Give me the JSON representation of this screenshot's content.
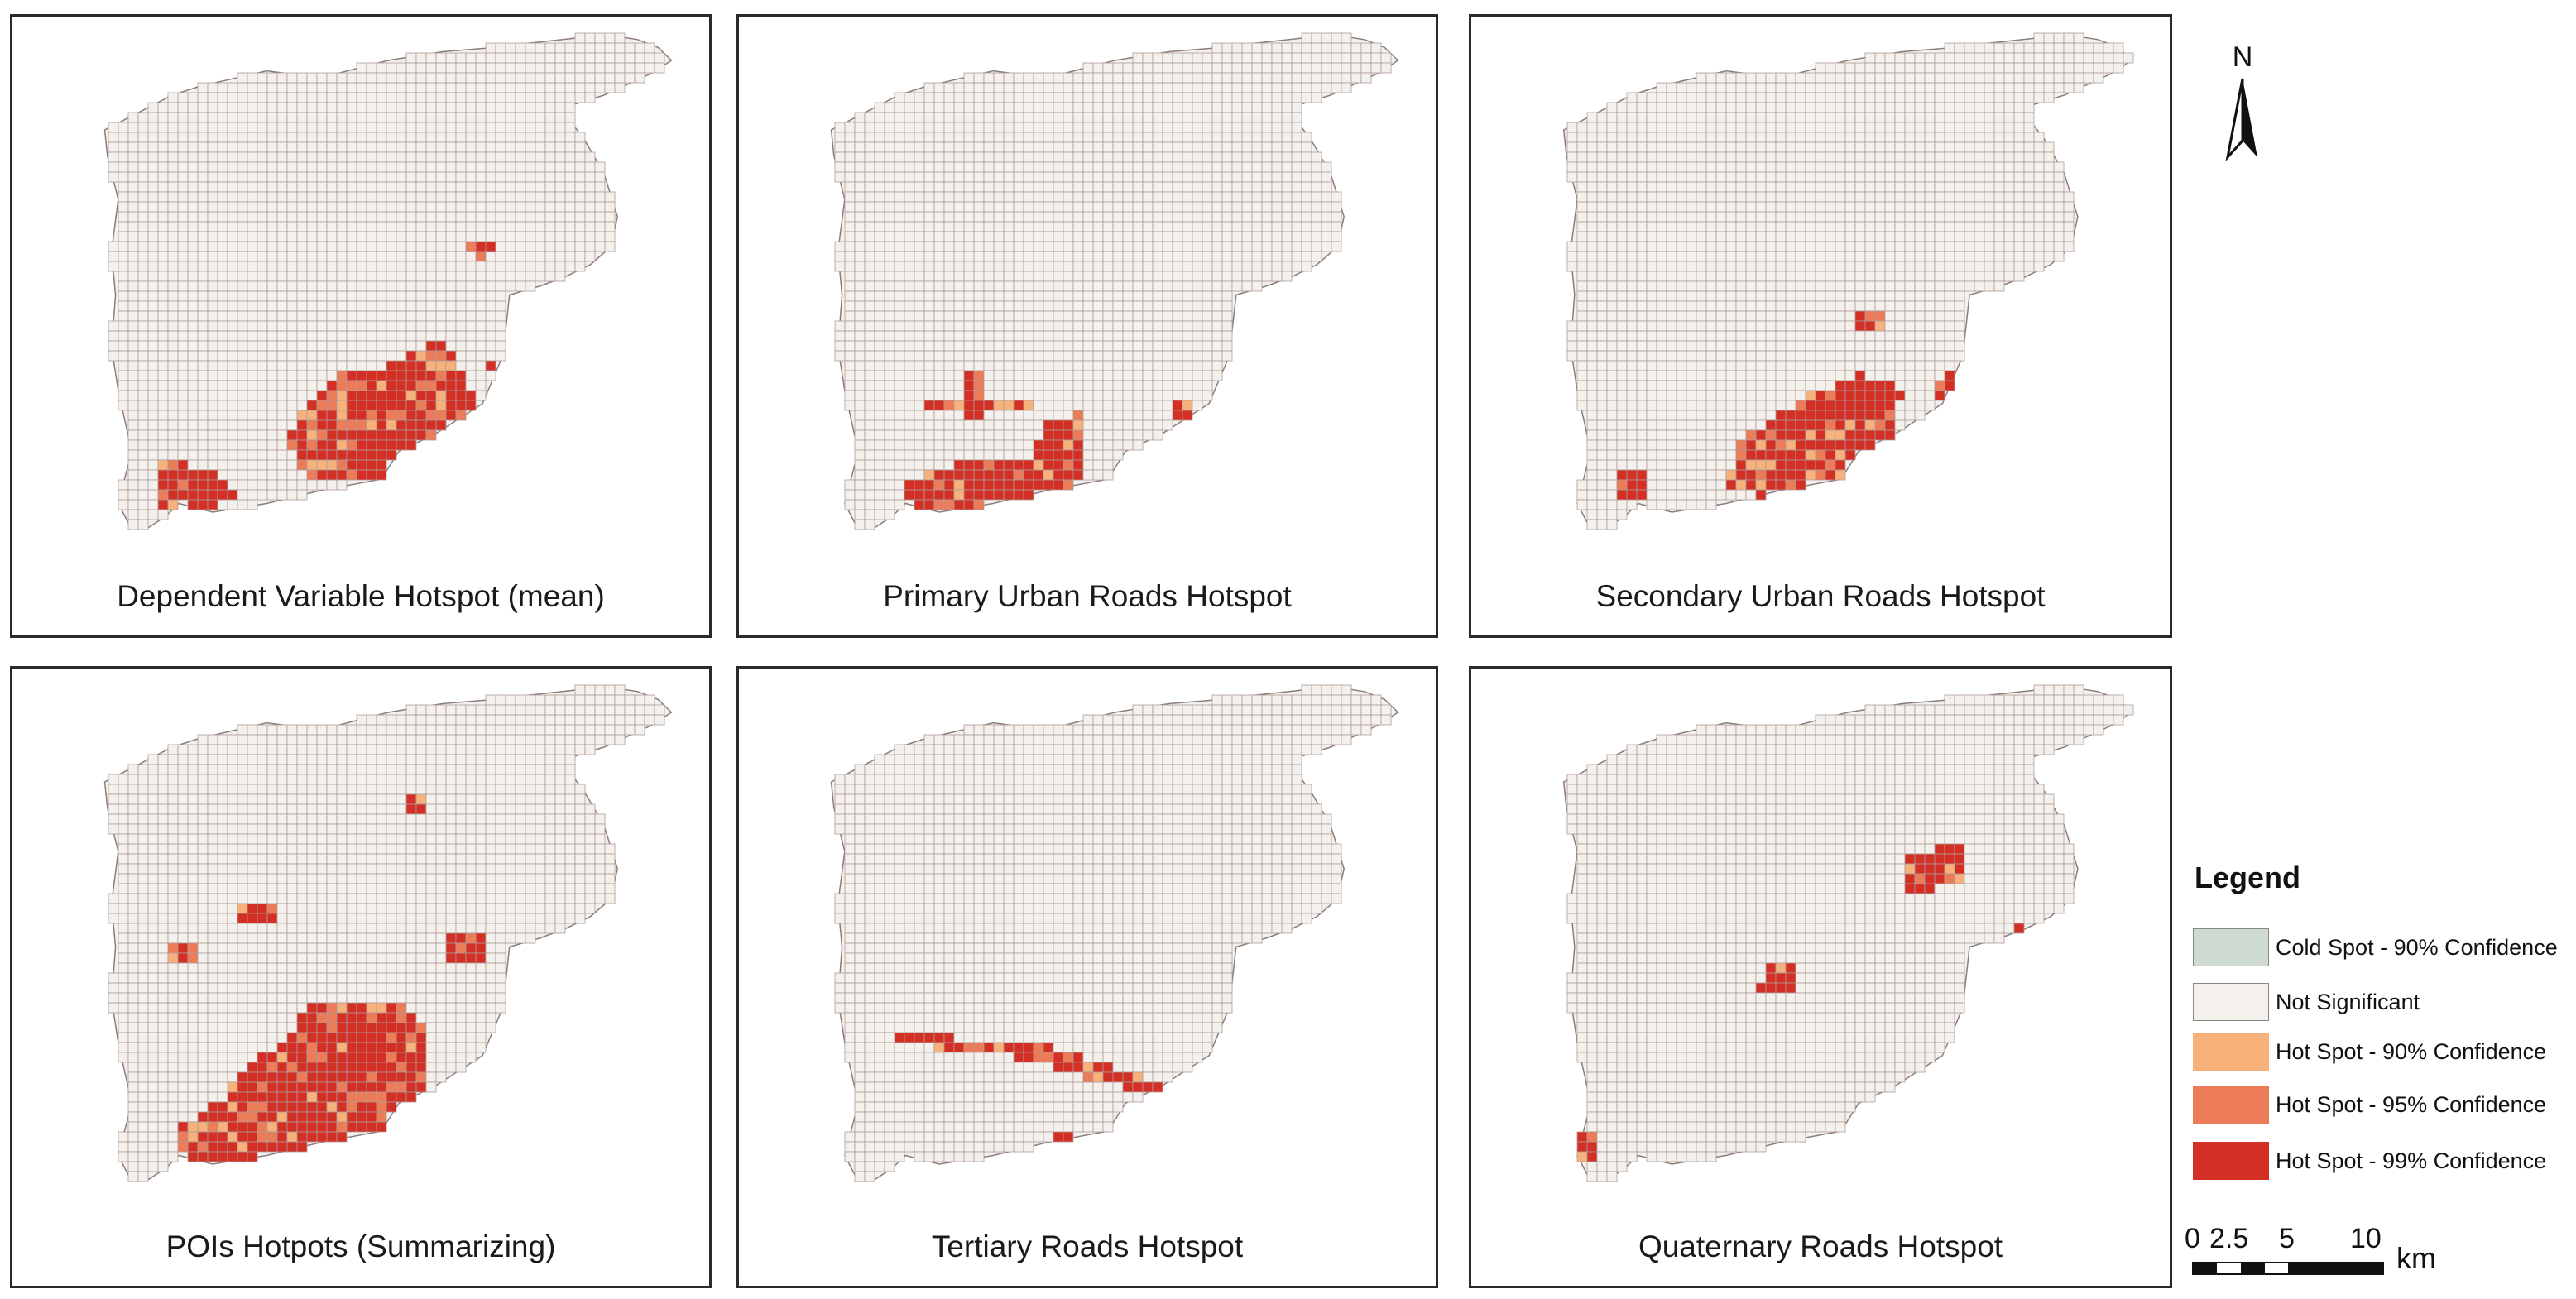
{
  "panels": [
    {
      "id": "p0",
      "title": "Dependent Variable Hotspot (mean)"
    },
    {
      "id": "p1",
      "title": "Primary Urban Roads Hotspot"
    },
    {
      "id": "p2",
      "title": "Secondary Urban Roads Hotspot"
    },
    {
      "id": "p3",
      "title": "POIs Hotpots (Summarizing)"
    },
    {
      "id": "p4",
      "title": "Tertiary Roads Hotspot"
    },
    {
      "id": "p5",
      "title": "Quaternary Roads Hotspot"
    }
  ],
  "north_arrow": {
    "label": "N"
  },
  "legend": {
    "title": "Legend",
    "items": [
      {
        "label": "Cold Spot - 90% Confidence",
        "color": "#cfdad0"
      },
      {
        "label": "Not Significant",
        "color": "#f4f1ed"
      },
      {
        "label": "Hot Spot - 90% Confidence",
        "color": "#f7b27b"
      },
      {
        "label": "Hot Spot - 95% Confidence",
        "color": "#ec7b57"
      },
      {
        "label": "Hot Spot - 99% Confidence",
        "color": "#d32f25"
      }
    ]
  },
  "scale_bar": {
    "ticks": [
      "0",
      "2.5",
      "5",
      "10"
    ],
    "unit": "km"
  },
  "colors": {
    "grid_line": "#b09a98",
    "not_significant": "#f4f1ed",
    "border": "#2a2a2a"
  }
}
